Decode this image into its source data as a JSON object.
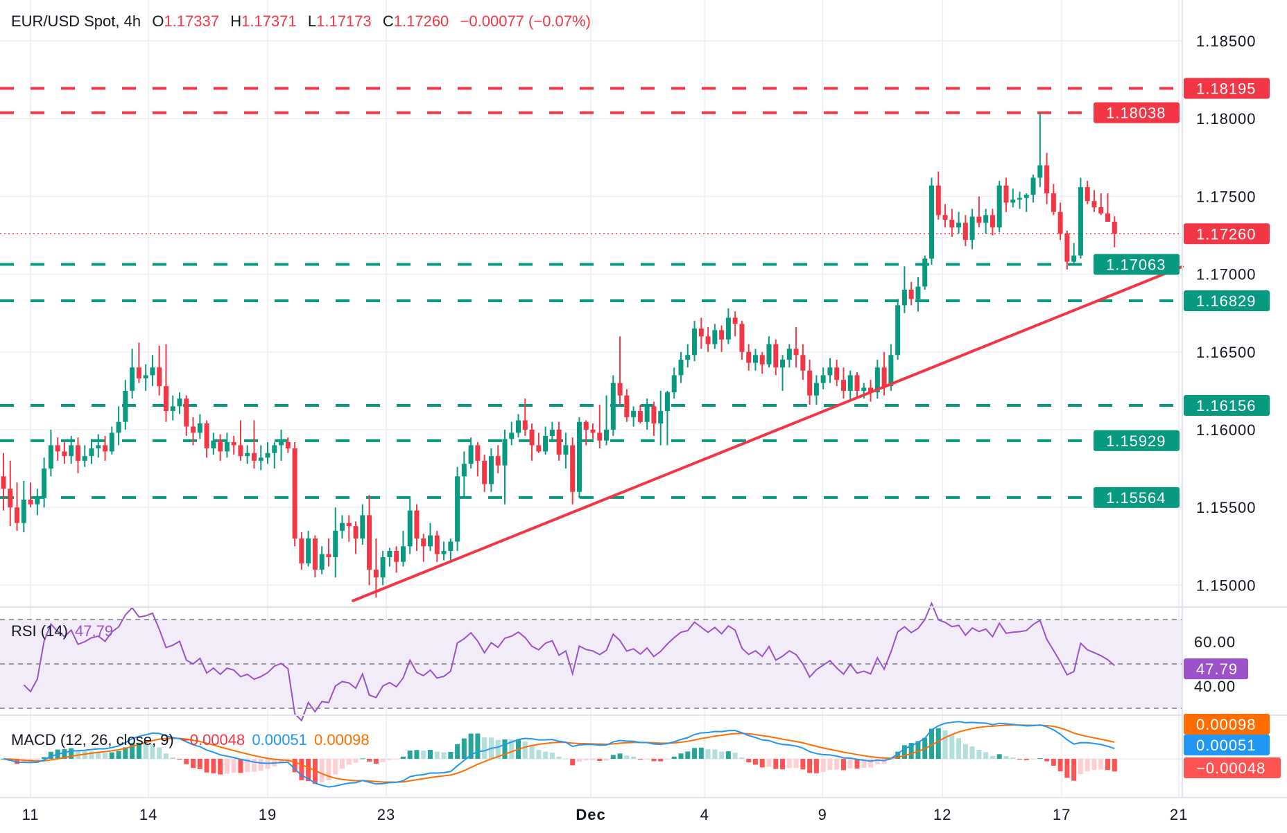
{
  "header": {
    "symbol": "EUR/USD Spot, 4h",
    "o_label": "O",
    "o": "1.17337",
    "h_label": "H",
    "h": "1.17371",
    "l_label": "L",
    "l": "1.17173",
    "c_label": "C",
    "c": "1.17260",
    "change": "−0.00077 (−0.07%)"
  },
  "rsi_legend": {
    "name": "RSI (14)",
    "value": "47.79"
  },
  "macd_legend": {
    "name": "MACD (12, 26, close, 9)",
    "hist": "−0.00048",
    "macd": "0.00051",
    "signal": "0.00098"
  },
  "colors": {
    "up": "#089981",
    "down": "#f23645",
    "trendline": "#f23645",
    "rsi": "#9b51c7",
    "macd": "#2196f3",
    "signal": "#ff6d00",
    "hist_up_strong": "#26a69a",
    "hist_up_weak": "#b2dfdb",
    "hist_down_strong": "#ff5252",
    "hist_down_weak": "#ffcdd2"
  },
  "chart_data": {
    "type": "candlestick",
    "title": "EUR/USD Spot, 4h",
    "y_ticks": [
      "1.18500",
      "1.18000",
      "1.17500",
      "1.17000",
      "1.16500",
      "1.16000",
      "1.15500",
      "1.15000"
    ],
    "ylim": [
      1.1467,
      1.1889
    ],
    "x_ticks": [
      {
        "label": "11",
        "candle": 4
      },
      {
        "label": "14",
        "candle": 21.4
      },
      {
        "label": "19",
        "candle": 39
      },
      {
        "label": "23",
        "candle": 56.5
      },
      {
        "label": "Dec",
        "candle": 86.7,
        "bold": true
      },
      {
        "label": "4",
        "candle": 103.5
      },
      {
        "label": "9",
        "candle": 120.9
      },
      {
        "label": "12",
        "candle": 138.6
      },
      {
        "label": "17",
        "candle": 156.2
      },
      {
        "label": "21",
        "candle": 173.5
      }
    ],
    "candles": [
      [
        1.157,
        1.1585,
        1.1548,
        1.1562
      ],
      [
        1.1562,
        1.158,
        1.1538,
        1.155
      ],
      [
        1.155,
        1.1566,
        1.1535,
        1.154
      ],
      [
        1.154,
        1.1567,
        1.1534,
        1.1555
      ],
      [
        1.1555,
        1.1566,
        1.155,
        1.1552
      ],
      [
        1.1552,
        1.1562,
        1.1545,
        1.1556
      ],
      [
        1.1556,
        1.1582,
        1.155,
        1.1575
      ],
      [
        1.1575,
        1.16,
        1.157,
        1.159
      ],
      [
        1.159,
        1.1595,
        1.158,
        1.1586
      ],
      [
        1.1586,
        1.1592,
        1.1578,
        1.1583
      ],
      [
        1.1583,
        1.1596,
        1.1578,
        1.159
      ],
      [
        1.159,
        1.1595,
        1.1572,
        1.158
      ],
      [
        1.158,
        1.159,
        1.1576,
        1.1583
      ],
      [
        1.1583,
        1.1594,
        1.1578,
        1.1588
      ],
      [
        1.1588,
        1.1597,
        1.1582,
        1.159
      ],
      [
        1.159,
        1.1596,
        1.158,
        1.1586
      ],
      [
        1.1586,
        1.1602,
        1.1584,
        1.1598
      ],
      [
        1.1598,
        1.1615,
        1.159,
        1.1605
      ],
      [
        1.1605,
        1.1632,
        1.16,
        1.1625
      ],
      [
        1.1625,
        1.1652,
        1.162,
        1.164
      ],
      [
        1.164,
        1.1656,
        1.163,
        1.1633
      ],
      [
        1.1633,
        1.1642,
        1.1625,
        1.1635
      ],
      [
        1.1635,
        1.1648,
        1.1628,
        1.164
      ],
      [
        1.164,
        1.1654,
        1.1622,
        1.1628
      ],
      [
        1.1628,
        1.1655,
        1.1605,
        1.1612
      ],
      [
        1.1612,
        1.1622,
        1.1606,
        1.1615
      ],
      [
        1.1615,
        1.1624,
        1.161,
        1.162
      ],
      [
        1.162,
        1.1622,
        1.1596,
        1.1602
      ],
      [
        1.1602,
        1.1608,
        1.159,
        1.1598
      ],
      [
        1.1598,
        1.161,
        1.1594,
        1.1604
      ],
      [
        1.1604,
        1.1606,
        1.1582,
        1.1588
      ],
      [
        1.1588,
        1.1598,
        1.1584,
        1.1593
      ],
      [
        1.1593,
        1.1597,
        1.158,
        1.1586
      ],
      [
        1.1586,
        1.1598,
        1.1582,
        1.1592
      ],
      [
        1.1592,
        1.1596,
        1.1584,
        1.159
      ],
      [
        1.159,
        1.1606,
        1.158,
        1.1583
      ],
      [
        1.1583,
        1.159,
        1.1578,
        1.1585
      ],
      [
        1.1585,
        1.1606,
        1.1575,
        1.158
      ],
      [
        1.158,
        1.159,
        1.1574,
        1.1582
      ],
      [
        1.1582,
        1.1592,
        1.1578,
        1.1585
      ],
      [
        1.1585,
        1.1592,
        1.1575,
        1.159
      ],
      [
        1.159,
        1.16,
        1.158,
        1.1592
      ],
      [
        1.1592,
        1.1595,
        1.1585,
        1.1588
      ],
      [
        1.1588,
        1.1592,
        1.1525,
        1.153
      ],
      [
        1.153,
        1.1534,
        1.151,
        1.1514
      ],
      [
        1.1514,
        1.1535,
        1.1512,
        1.153
      ],
      [
        1.153,
        1.1532,
        1.1505,
        1.151
      ],
      [
        1.151,
        1.1525,
        1.1507,
        1.152
      ],
      [
        1.152,
        1.153,
        1.1512,
        1.1518
      ],
      [
        1.1518,
        1.155,
        1.1505,
        1.1535
      ],
      [
        1.1535,
        1.1545,
        1.153,
        1.154
      ],
      [
        1.154,
        1.1545,
        1.1528,
        1.1538
      ],
      [
        1.1538,
        1.1541,
        1.152,
        1.153
      ],
      [
        1.153,
        1.1552,
        1.1526,
        1.1545
      ],
      [
        1.1545,
        1.1558,
        1.15,
        1.151
      ],
      [
        1.151,
        1.153,
        1.1492,
        1.1505
      ],
      [
        1.1505,
        1.1522,
        1.15,
        1.1518
      ],
      [
        1.1518,
        1.1524,
        1.1512,
        1.1522
      ],
      [
        1.1522,
        1.1525,
        1.1508,
        1.1515
      ],
      [
        1.1515,
        1.1535,
        1.1512,
        1.1525
      ],
      [
        1.1525,
        1.1556,
        1.152,
        1.1548
      ],
      [
        1.1548,
        1.1552,
        1.1522,
        1.153
      ],
      [
        1.153,
        1.1533,
        1.1515,
        1.1525
      ],
      [
        1.1525,
        1.154,
        1.1522,
        1.1532
      ],
      [
        1.1532,
        1.1535,
        1.1515,
        1.152
      ],
      [
        1.152,
        1.1528,
        1.1516,
        1.1522
      ],
      [
        1.1522,
        1.153,
        1.1515,
        1.1528
      ],
      [
        1.1528,
        1.1576,
        1.1522,
        1.157
      ],
      [
        1.157,
        1.1586,
        1.1556,
        1.1578
      ],
      [
        1.1578,
        1.1595,
        1.1575,
        1.159
      ],
      [
        1.159,
        1.1592,
        1.157,
        1.158
      ],
      [
        1.158,
        1.1584,
        1.156,
        1.1565
      ],
      [
        1.1565,
        1.1588,
        1.156,
        1.1583
      ],
      [
        1.1583,
        1.159,
        1.1572,
        1.1577
      ],
      [
        1.1577,
        1.16,
        1.1552,
        1.1594
      ],
      [
        1.1594,
        1.1605,
        1.159,
        1.1598
      ],
      [
        1.1598,
        1.161,
        1.1595,
        1.1606
      ],
      [
        1.1606,
        1.162,
        1.1596,
        1.16
      ],
      [
        1.16,
        1.1604,
        1.158,
        1.159
      ],
      [
        1.159,
        1.1598,
        1.1585,
        1.1586
      ],
      [
        1.1586,
        1.1602,
        1.1584,
        1.1596
      ],
      [
        1.1596,
        1.1605,
        1.1592,
        1.16
      ],
      [
        1.16,
        1.1605,
        1.158,
        1.1584
      ],
      [
        1.1584,
        1.1598,
        1.1575,
        1.159
      ],
      [
        1.159,
        1.1595,
        1.1552,
        1.156
      ],
      [
        1.156,
        1.1608,
        1.1556,
        1.1605
      ],
      [
        1.1605,
        1.1606,
        1.159,
        1.16
      ],
      [
        1.16,
        1.1604,
        1.1594,
        1.1598
      ],
      [
        1.1598,
        1.1616,
        1.1588,
        1.1593
      ],
      [
        1.1593,
        1.1622,
        1.159,
        1.16
      ],
      [
        1.16,
        1.1635,
        1.1596,
        1.163
      ],
      [
        1.163,
        1.166,
        1.1616,
        1.1622
      ],
      [
        1.1622,
        1.1626,
        1.1605,
        1.1608
      ],
      [
        1.1608,
        1.1615,
        1.1602,
        1.1612
      ],
      [
        1.1612,
        1.1616,
        1.1604,
        1.1605
      ],
      [
        1.1605,
        1.162,
        1.16,
        1.1615
      ],
      [
        1.1615,
        1.1618,
        1.1596,
        1.1604
      ],
      [
        1.1604,
        1.1625,
        1.159,
        1.1612
      ],
      [
        1.1612,
        1.1625,
        1.159,
        1.1624
      ],
      [
        1.1624,
        1.164,
        1.162,
        1.1635
      ],
      [
        1.1635,
        1.165,
        1.163,
        1.1645
      ],
      [
        1.1645,
        1.1655,
        1.164,
        1.1648
      ],
      [
        1.1648,
        1.167,
        1.1644,
        1.1665
      ],
      [
        1.1665,
        1.1672,
        1.1652,
        1.166
      ],
      [
        1.166,
        1.1666,
        1.165,
        1.1655
      ],
      [
        1.1655,
        1.1668,
        1.1652,
        1.1664
      ],
      [
        1.1664,
        1.1667,
        1.165,
        1.1658
      ],
      [
        1.1658,
        1.1678,
        1.1655,
        1.1672
      ],
      [
        1.1672,
        1.1676,
        1.166,
        1.1668
      ],
      [
        1.1668,
        1.167,
        1.1645,
        1.165
      ],
      [
        1.165,
        1.1655,
        1.1638,
        1.1643
      ],
      [
        1.1643,
        1.1652,
        1.1638,
        1.1648
      ],
      [
        1.1648,
        1.165,
        1.1636,
        1.1642
      ],
      [
        1.1642,
        1.166,
        1.164,
        1.1655
      ],
      [
        1.1655,
        1.1658,
        1.1635,
        1.164
      ],
      [
        1.164,
        1.1648,
        1.1625,
        1.1645
      ],
      [
        1.1645,
        1.1655,
        1.164,
        1.1652
      ],
      [
        1.1652,
        1.1666,
        1.164,
        1.1648
      ],
      [
        1.1648,
        1.1655,
        1.1632,
        1.1638
      ],
      [
        1.1638,
        1.1645,
        1.1616,
        1.1622
      ],
      [
        1.1622,
        1.1635,
        1.1616,
        1.163
      ],
      [
        1.163,
        1.164,
        1.1626,
        1.1635
      ],
      [
        1.1635,
        1.1646,
        1.163,
        1.164
      ],
      [
        1.164,
        1.1645,
        1.1628,
        1.1632
      ],
      [
        1.1632,
        1.164,
        1.162,
        1.1625
      ],
      [
        1.1625,
        1.1638,
        1.1618,
        1.1635
      ],
      [
        1.1635,
        1.1637,
        1.162,
        1.1625
      ],
      [
        1.1625,
        1.163,
        1.162,
        1.1627
      ],
      [
        1.1627,
        1.1632,
        1.1618,
        1.1624
      ],
      [
        1.1624,
        1.1645,
        1.162,
        1.164
      ],
      [
        1.164,
        1.165,
        1.1622,
        1.1628
      ],
      [
        1.1628,
        1.1655,
        1.1625,
        1.1648
      ],
      [
        1.1648,
        1.1684,
        1.1645,
        1.168
      ],
      [
        1.168,
        1.1705,
        1.1675,
        1.169
      ],
      [
        1.169,
        1.1695,
        1.168,
        1.1684
      ],
      [
        1.1684,
        1.1698,
        1.1676,
        1.1692
      ],
      [
        1.1692,
        1.1712,
        1.169,
        1.171
      ],
      [
        1.171,
        1.1762,
        1.1706,
        1.1757
      ],
      [
        1.1757,
        1.1766,
        1.1735,
        1.1738
      ],
      [
        1.1738,
        1.1745,
        1.173,
        1.1735
      ],
      [
        1.1735,
        1.1742,
        1.1724,
        1.173
      ],
      [
        1.173,
        1.174,
        1.1726,
        1.1733
      ],
      [
        1.1733,
        1.1738,
        1.1718,
        1.1722
      ],
      [
        1.1722,
        1.1742,
        1.1716,
        1.1737
      ],
      [
        1.1737,
        1.175,
        1.173,
        1.1733
      ],
      [
        1.1733,
        1.1742,
        1.1726,
        1.1738
      ],
      [
        1.1738,
        1.1742,
        1.1725,
        1.173
      ],
      [
        1.173,
        1.176,
        1.1727,
        1.1757
      ],
      [
        1.1757,
        1.1762,
        1.174,
        1.1746
      ],
      [
        1.1746,
        1.1755,
        1.1743,
        1.1748
      ],
      [
        1.1748,
        1.1753,
        1.1742,
        1.1749
      ],
      [
        1.1749,
        1.1752,
        1.174,
        1.1751
      ],
      [
        1.1751,
        1.1764,
        1.1746,
        1.1762
      ],
      [
        1.1762,
        1.1804,
        1.1756,
        1.177
      ],
      [
        1.177,
        1.1778,
        1.1745,
        1.1752
      ],
      [
        1.1752,
        1.1758,
        1.1738,
        1.174
      ],
      [
        1.174,
        1.1746,
        1.1722,
        1.1726
      ],
      [
        1.1726,
        1.1728,
        1.1703,
        1.1708
      ],
      [
        1.1708,
        1.172,
        1.1706,
        1.1712
      ],
      [
        1.1712,
        1.1762,
        1.171,
        1.1756
      ],
      [
        1.1756,
        1.176,
        1.1745,
        1.1747
      ],
      [
        1.1747,
        1.1754,
        1.174,
        1.1743
      ],
      [
        1.1743,
        1.1752,
        1.1738,
        1.1739
      ],
      [
        1.1739,
        1.1752,
        1.1734,
        1.17337
      ],
      [
        1.17337,
        1.17371,
        1.17173,
        1.1726
      ]
    ],
    "resistance_levels": [
      "1.18195",
      "1.18038"
    ],
    "support_levels": [
      "1.17063",
      "1.16829",
      "1.16156",
      "1.15929",
      "1.15564"
    ],
    "current_price": "1.17260",
    "trendline": [
      {
        "candle": 51.6,
        "price": 1.149
      },
      {
        "candle": 174,
        "price": 1.17048
      }
    ],
    "rsi": {
      "period": 14,
      "y_ticks": [
        "60.00",
        "40.00"
      ],
      "bands": [
        70,
        30
      ],
      "midline": 50,
      "last": "47.79"
    },
    "macd": {
      "fast": 12,
      "slow": 26,
      "signal": 9,
      "last_hist": "−0.00048",
      "last_macd": "0.00051",
      "last_signal": "0.00098"
    }
  }
}
